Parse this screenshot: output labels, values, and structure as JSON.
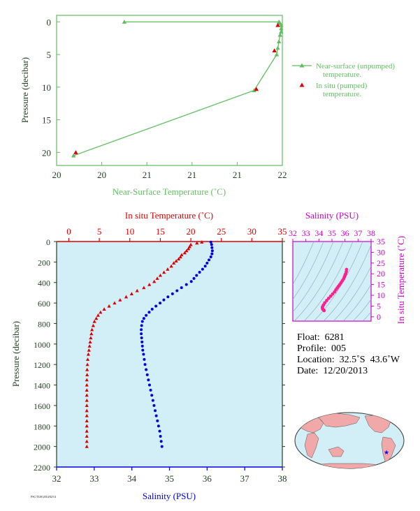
{
  "colors": {
    "near_surface": "#5fbf5f",
    "in_situ": "#dd0000",
    "salinity": "#0000dd",
    "ts_accent": "#cc00cc",
    "ts_points": "#ff2090",
    "panel_bg": "#d2eef7",
    "axis_dark": "#1f3f1f",
    "land": "#f0a8a8",
    "ocean": "#d2eef7"
  },
  "chart_data": [
    {
      "type": "line",
      "xlabel": "Near-Surface Temperature (˚C)",
      "ylabel": "Pressure (decibar)",
      "xlim": [
        20,
        22
      ],
      "ylim": [
        22,
        -1
      ],
      "x_ticks": [
        "20",
        "20",
        "21",
        "21",
        "21",
        "22"
      ],
      "x_tick_values": [
        20,
        20.4,
        20.8,
        21.2,
        21.6,
        22
      ],
      "y_ticks": [
        "0",
        "5",
        "10",
        "15",
        "20"
      ],
      "y_tick_values": [
        0,
        5,
        10,
        15,
        20
      ],
      "legend": [
        "Near-surface (unpumped) temperature.",
        "In situ (pumped) temperature."
      ],
      "legend_position": "right",
      "series": [
        {
          "name": "Near-surface (unpumped) temperature.",
          "marker": "triangle",
          "points": [
            [
              20.6,
              0.0
            ],
            [
              21.97,
              0.0
            ],
            [
              21.98,
              0.2
            ],
            [
              21.99,
              0.5
            ],
            [
              21.99,
              1.0
            ],
            [
              21.99,
              1.5
            ],
            [
              21.98,
              2.0
            ],
            [
              21.97,
              3.0
            ],
            [
              21.96,
              4.0
            ],
            [
              21.95,
              5.0
            ],
            [
              21.75,
              10.5
            ],
            [
              20.15,
              20.5
            ]
          ]
        },
        {
          "name": "In situ (pumped) temperature.",
          "marker": "triangle",
          "points": [
            [
              21.96,
              0.5
            ],
            [
              21.93,
              4.4
            ],
            [
              21.77,
              10.3
            ],
            [
              20.17,
              20.0
            ]
          ]
        }
      ]
    },
    {
      "type": "scatter",
      "xlabel_top": "In situ Temperature (˚C)",
      "xlabel_bottom": "Salinity (PSU)",
      "ylabel": "Pressure (decibar)",
      "temp_lim": [
        -2,
        35
      ],
      "sal_lim": [
        32,
        38
      ],
      "ylim": [
        2200,
        0
      ],
      "temp_ticks": [
        "0",
        "5",
        "10",
        "15",
        "20",
        "25",
        "30",
        "35"
      ],
      "sal_ticks": [
        "32",
        "33",
        "34",
        "35",
        "36",
        "37",
        "38"
      ],
      "y_ticks": [
        "0",
        "200",
        "400",
        "600",
        "800",
        "1000",
        "1200",
        "1400",
        "1600",
        "1800",
        "2000",
        "2200"
      ],
      "series": [
        {
          "name": "In situ Temperature (˚C)",
          "marker": "triangle",
          "points": [
            [
              21.8,
              5
            ],
            [
              21.0,
              15
            ],
            [
              20.0,
              30
            ],
            [
              19.8,
              50
            ],
            [
              19.6,
              70
            ],
            [
              19.3,
              90
            ],
            [
              19.0,
              110
            ],
            [
              18.5,
              130
            ],
            [
              18.3,
              150
            ],
            [
              18.0,
              170
            ],
            [
              17.6,
              190
            ],
            [
              17.2,
              210
            ],
            [
              16.8,
              240
            ],
            [
              16.2,
              270
            ],
            [
              15.6,
              300
            ],
            [
              15.0,
              330
            ],
            [
              14.5,
              360
            ],
            [
              14.0,
              390
            ],
            [
              13.2,
              420
            ],
            [
              12.3,
              450
            ],
            [
              11.2,
              480
            ],
            [
              10.3,
              510
            ],
            [
              9.4,
              540
            ],
            [
              8.4,
              570
            ],
            [
              7.5,
              600
            ],
            [
              6.6,
              630
            ],
            [
              5.8,
              660
            ],
            [
              5.2,
              690
            ],
            [
              4.8,
              720
            ],
            [
              4.5,
              750
            ],
            [
              4.2,
              780
            ],
            [
              4.0,
              820
            ],
            [
              3.8,
              860
            ],
            [
              3.7,
              900
            ],
            [
              3.6,
              940
            ],
            [
              3.5,
              980
            ],
            [
              3.4,
              1020
            ],
            [
              3.3,
              1060
            ],
            [
              3.2,
              1100
            ],
            [
              3.1,
              1150
            ],
            [
              3.05,
              1200
            ],
            [
              3.0,
              1250
            ],
            [
              3.0,
              1300
            ],
            [
              2.95,
              1350
            ],
            [
              2.95,
              1400
            ],
            [
              2.95,
              1450
            ],
            [
              2.95,
              1500
            ],
            [
              2.95,
              1550
            ],
            [
              2.95,
              1600
            ],
            [
              2.95,
              1650
            ],
            [
              2.95,
              1700
            ],
            [
              2.95,
              1750
            ],
            [
              2.95,
              1800
            ],
            [
              2.95,
              1850
            ],
            [
              2.95,
              1900
            ],
            [
              2.95,
              1950
            ],
            [
              2.95,
              2000
            ]
          ]
        },
        {
          "name": "Salinity (PSU)",
          "marker": "circle",
          "points": [
            [
              36.1,
              5
            ],
            [
              36.12,
              30
            ],
            [
              36.13,
              60
            ],
            [
              36.14,
              90
            ],
            [
              36.13,
              120
            ],
            [
              36.1,
              150
            ],
            [
              36.05,
              180
            ],
            [
              36.0,
              210
            ],
            [
              35.95,
              240
            ],
            [
              35.88,
              270
            ],
            [
              35.8,
              300
            ],
            [
              35.72,
              330
            ],
            [
              35.65,
              360
            ],
            [
              35.58,
              390
            ],
            [
              35.45,
              420
            ],
            [
              35.32,
              450
            ],
            [
              35.2,
              480
            ],
            [
              35.08,
              510
            ],
            [
              34.96,
              540
            ],
            [
              34.85,
              570
            ],
            [
              34.75,
              600
            ],
            [
              34.64,
              630
            ],
            [
              34.54,
              660
            ],
            [
              34.46,
              690
            ],
            [
              34.38,
              720
            ],
            [
              34.32,
              750
            ],
            [
              34.28,
              780
            ],
            [
              34.26,
              820
            ],
            [
              34.25,
              860
            ],
            [
              34.25,
              900
            ],
            [
              34.26,
              940
            ],
            [
              34.27,
              980
            ],
            [
              34.28,
              1020
            ],
            [
              34.29,
              1060
            ],
            [
              34.31,
              1100
            ],
            [
              34.33,
              1150
            ],
            [
              34.35,
              1200
            ],
            [
              34.38,
              1250
            ],
            [
              34.41,
              1300
            ],
            [
              34.44,
              1350
            ],
            [
              34.47,
              1400
            ],
            [
              34.5,
              1450
            ],
            [
              34.53,
              1500
            ],
            [
              34.56,
              1550
            ],
            [
              34.59,
              1600
            ],
            [
              34.62,
              1650
            ],
            [
              34.65,
              1700
            ],
            [
              34.68,
              1750
            ],
            [
              34.71,
              1800
            ],
            [
              34.74,
              1850
            ],
            [
              34.76,
              1900
            ],
            [
              34.78,
              1950
            ],
            [
              34.8,
              2000
            ]
          ]
        }
      ]
    },
    {
      "type": "scatter",
      "xlabel": "Salinity (PSU)",
      "ylabel": "In situ Temperature (˚C)",
      "xlim": [
        32,
        38
      ],
      "ylim": [
        -2,
        35
      ],
      "x_ticks": [
        "32",
        "33",
        "34",
        "35",
        "36",
        "37",
        "38"
      ],
      "y_ticks": [
        "0",
        "5",
        "10",
        "15",
        "20",
        "25",
        "30",
        "35"
      ],
      "points": [
        [
          34.4,
          2.9
        ],
        [
          34.35,
          3.2
        ],
        [
          34.3,
          3.5
        ],
        [
          34.28,
          3.8
        ],
        [
          34.27,
          4.2
        ],
        [
          34.28,
          4.7
        ],
        [
          34.35,
          5.5
        ],
        [
          34.45,
          6.5
        ],
        [
          34.6,
          7.6
        ],
        [
          34.75,
          8.6
        ],
        [
          34.9,
          9.6
        ],
        [
          35.05,
          10.6
        ],
        [
          35.2,
          11.6
        ],
        [
          35.3,
          12.6
        ],
        [
          35.4,
          13.4
        ],
        [
          35.5,
          14.2
        ],
        [
          35.6,
          15.0
        ],
        [
          35.7,
          15.9
        ],
        [
          35.8,
          16.8
        ],
        [
          35.9,
          17.7
        ],
        [
          35.95,
          18.5
        ],
        [
          36.0,
          19.3
        ],
        [
          36.05,
          20.0
        ],
        [
          36.1,
          21.0
        ],
        [
          36.12,
          22.0
        ]
      ]
    }
  ],
  "float_info": {
    "float": "Float:  6281",
    "profile": "Profile:  005",
    "location": "Location:  32.5˚S  43.6˚W",
    "date": "Date:  12/20/2013"
  },
  "map": {
    "marker": "★",
    "marker_lon": -43.6,
    "marker_lat": -32.5
  },
  "footer_stamp": "FSC/TLM 2014/02/14"
}
